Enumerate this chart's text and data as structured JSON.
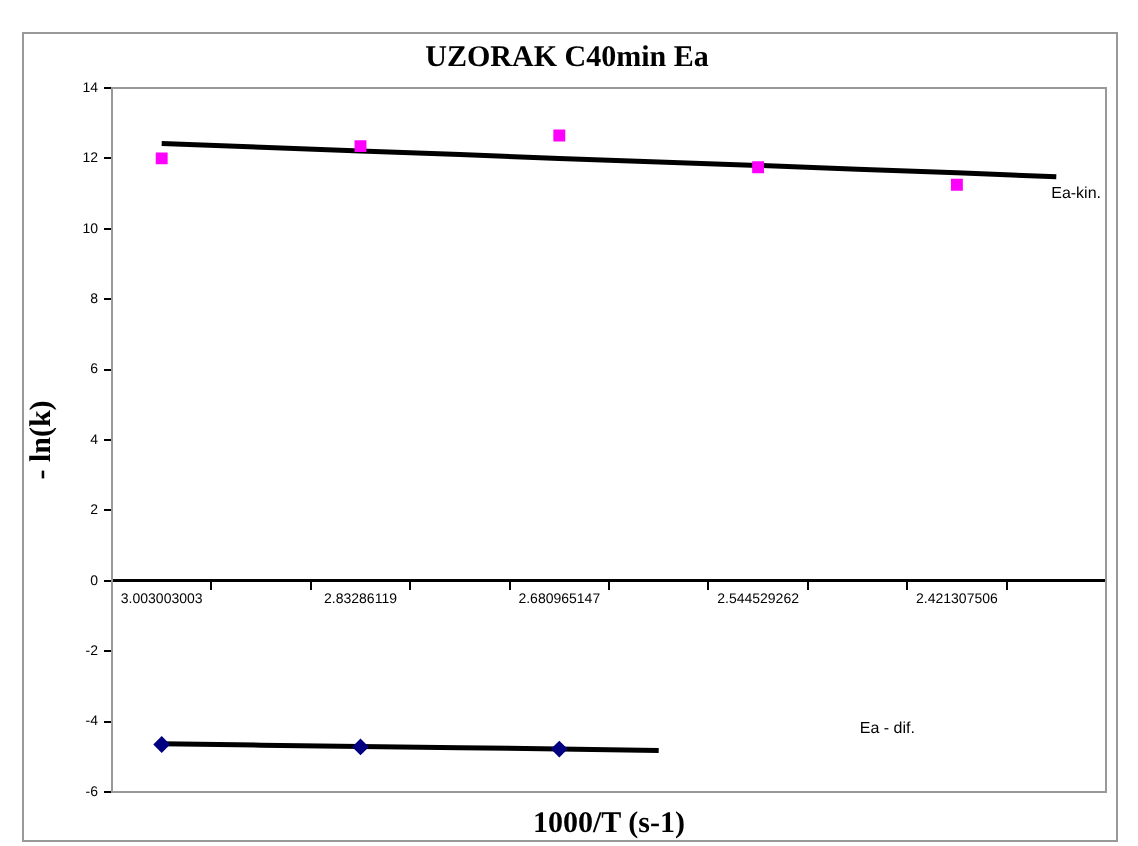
{
  "chart_data": {
    "type": "scatter",
    "title": "UZORAK C40min Ea",
    "xlabel": "1000/T (s-1)",
    "ylabel": "- ln(k)",
    "categories": [
      "3.003003003",
      null,
      "2.83286119",
      null,
      "2.680965147",
      null,
      "2.544529262",
      null,
      "2.421307506",
      null
    ],
    "series": [
      {
        "color": "#ff00ff",
        "marker": "square",
        "values": [
          12.0,
          null,
          12.35,
          null,
          12.65,
          null,
          11.75,
          null,
          11.25,
          null
        ]
      },
      {
        "type": "line",
        "color": "#000000",
        "marker": "none",
        "values": [
          12.42,
          12.32,
          12.21,
          12.11,
          12.0,
          11.9,
          11.8,
          11.69,
          11.59,
          11.48
        ]
      },
      {
        "color": "#000080",
        "marker": "diamond",
        "values": [
          -4.65,
          null,
          -4.72,
          null,
          -4.78,
          null,
          null,
          null,
          null,
          null
        ]
      },
      {
        "type": "line",
        "color": "#000000",
        "marker": "none",
        "values": [
          -4.63,
          -4.67,
          -4.71,
          -4.74,
          -4.78,
          -4.82,
          null,
          null,
          null,
          null
        ]
      }
    ],
    "annotations": [
      "Ea-kin.",
      "Ea - dif."
    ],
    "ylim": [
      -6,
      14
    ],
    "yticks": [
      -6,
      -4,
      -2,
      0,
      2,
      4,
      6,
      8,
      10,
      12,
      14
    ],
    "grid": false,
    "legend": false
  }
}
